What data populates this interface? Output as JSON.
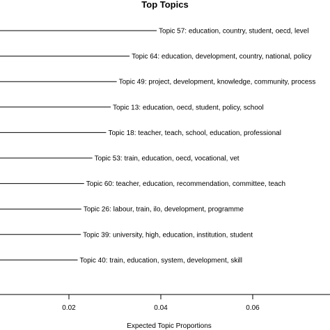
{
  "chart_data": {
    "type": "bar",
    "orientation": "horizontal",
    "title": "Top Topics",
    "xlabel": "Expected Topic Proportions",
    "ylabel": "",
    "xlim": [
      0.005,
      0.075
    ],
    "x_ticks": [
      0.02,
      0.04,
      0.06
    ],
    "x_tick_labels": [
      "0.02",
      "0.04",
      "0.06"
    ],
    "grid": false,
    "legend": "none",
    "bars": [
      {
        "label": "Topic 57: education, country, student, oecd, level",
        "value": 0.0391
      },
      {
        "label": "Topic 64: education, development, country, national, policy",
        "value": 0.0332
      },
      {
        "label": "Topic 49: project, development, knowledge, community, process",
        "value": 0.0304
      },
      {
        "label": "Topic 13: education, oecd, student, policy, school",
        "value": 0.0291
      },
      {
        "label": "Topic 18: teacher, teach, school, education, professional",
        "value": 0.0281
      },
      {
        "label": "Topic 53: train, education, oecd, vocational, vet",
        "value": 0.0251
      },
      {
        "label": "Topic 60: teacher, education, recommendation, committee, teach",
        "value": 0.0233
      },
      {
        "label": "Topic 26: labour, train, ilo, development, programme",
        "value": 0.0227
      },
      {
        "label": "Topic 39: university, high, education, institution, student",
        "value": 0.0226
      },
      {
        "label": "Topic 40: train, education, system, development, skill",
        "value": 0.0219
      }
    ]
  }
}
